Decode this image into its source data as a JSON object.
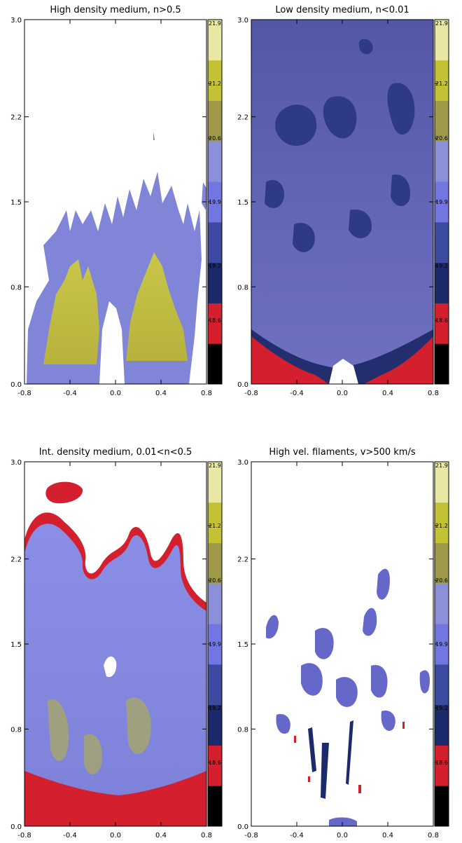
{
  "chart_data": [
    {
      "type": "heatmap",
      "title": "High density medium, n>0.5",
      "xlim": [
        -0.8,
        0.8
      ],
      "ylim": [
        0.0,
        3.0
      ],
      "x_ticks": [
        "-0.8",
        "-0.4",
        "0.0",
        "0.4",
        "0.8"
      ],
      "y_ticks": [
        "0.0",
        "0.8",
        "1.5",
        "2.2",
        "3.0"
      ],
      "colorbar_ticks": [
        "17.9",
        "18.6",
        "19.2",
        "19.9",
        "20.6",
        "21.2",
        "21.9"
      ],
      "color_ramp": [
        "#000000",
        "#d4202e",
        "#1c2a6b",
        "#3c4aa0",
        "#7276e0",
        "#8c90d8",
        "#9e9a4a",
        "#c3c234",
        "#e8e8a4"
      ]
    },
    {
      "type": "heatmap",
      "title": "Low density medium, n<0.01",
      "xlim": [
        -0.8,
        0.8
      ],
      "ylim": [
        0.0,
        3.0
      ],
      "x_ticks": [
        "-0.8",
        "-0.4",
        "0.0",
        "0.4",
        "0.8"
      ],
      "y_ticks": [
        "0.0",
        "0.8",
        "1.5",
        "2.2",
        "3.0"
      ],
      "colorbar_ticks": [
        "17.9",
        "18.6",
        "19.2",
        "19.9",
        "20.6",
        "21.2",
        "21.9"
      ],
      "color_ramp": [
        "#000000",
        "#d4202e",
        "#1c2a6b",
        "#3c4aa0",
        "#7276e0",
        "#8c90d8",
        "#9e9a4a",
        "#c3c234",
        "#e8e8a4"
      ]
    },
    {
      "type": "heatmap",
      "title": "Int. density medium, 0.01<n<0.5",
      "xlim": [
        -0.8,
        0.8
      ],
      "ylim": [
        0.0,
        3.0
      ],
      "x_ticks": [
        "-0.8",
        "-0.4",
        "0.0",
        "0.4",
        "0.8"
      ],
      "y_ticks": [
        "0.0",
        "0.8",
        "1.5",
        "2.2",
        "3.0"
      ],
      "colorbar_ticks": [
        "17.9",
        "18.6",
        "19.2",
        "19.9",
        "20.6",
        "21.2",
        "21.9"
      ],
      "color_ramp": [
        "#000000",
        "#d4202e",
        "#1c2a6b",
        "#3c4aa0",
        "#7276e0",
        "#8c90d8",
        "#9e9a4a",
        "#c3c234",
        "#e8e8a4"
      ]
    },
    {
      "type": "heatmap",
      "title": "High vel. filaments, v>500 km/s",
      "xlim": [
        -0.8,
        0.8
      ],
      "ylim": [
        0.0,
        3.0
      ],
      "x_ticks": [
        "-0.8",
        "-0.4",
        "0.0",
        "0.4",
        "0.8"
      ],
      "y_ticks": [
        "0.0",
        "0.8",
        "1.5",
        "2.2",
        "3.0"
      ],
      "colorbar_ticks": [
        "17.9",
        "18.6",
        "19.2",
        "19.9",
        "20.6",
        "21.2",
        "21.9"
      ],
      "color_ramp": [
        "#000000",
        "#d4202e",
        "#1c2a6b",
        "#3c4aa0",
        "#7276e0",
        "#8c90d8",
        "#9e9a4a",
        "#c3c234",
        "#e8e8a4"
      ]
    }
  ]
}
